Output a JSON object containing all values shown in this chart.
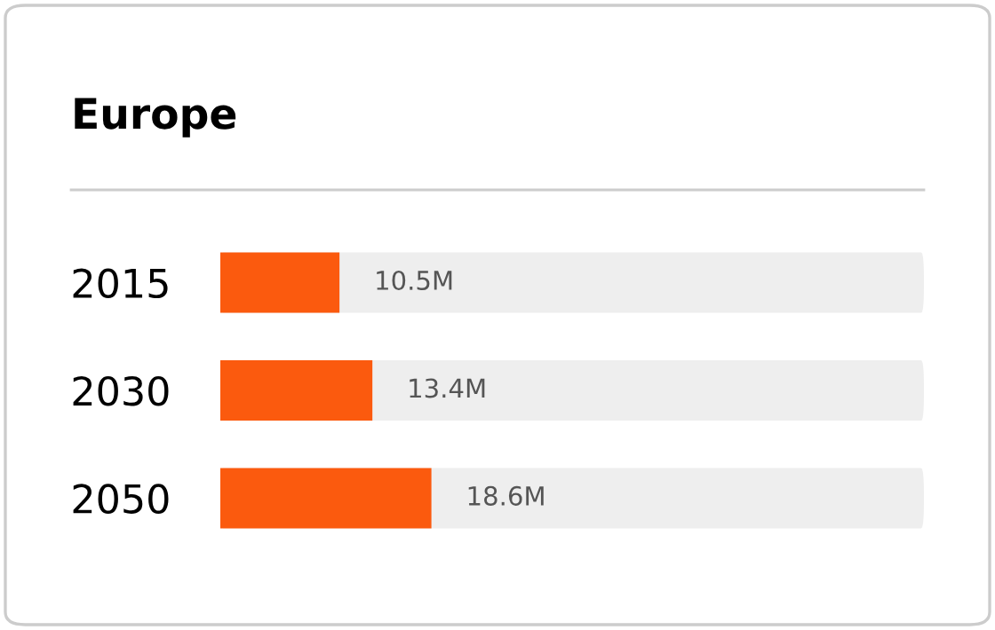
{
  "chart_data": {
    "type": "bar",
    "orientation": "horizontal",
    "title": "Europe",
    "categories": [
      "2015",
      "2030",
      "2050"
    ],
    "values": [
      10.5,
      13.4,
      18.6
    ],
    "value_labels": [
      "10.5M",
      "13.4M",
      "18.6M"
    ],
    "color": "#fb5a0e",
    "grid": false,
    "legend": false
  }
}
